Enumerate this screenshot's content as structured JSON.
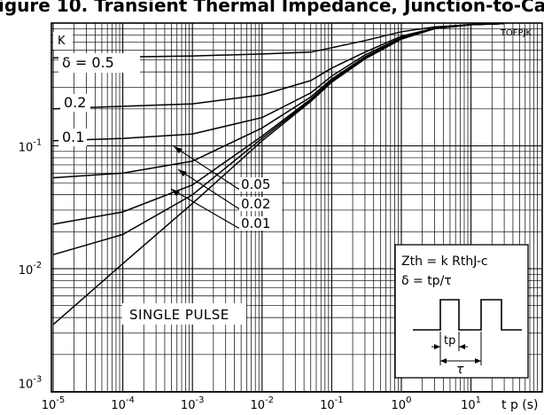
{
  "figure": {
    "clipped_title": "igure 10. Transient Thermal Impedance, Junction-to-Case",
    "code": "TOFPJK"
  },
  "chart_data": {
    "type": "line",
    "title": "",
    "xlabel": "t p (s)",
    "ylabel": "K",
    "x_scale": "log",
    "y_scale": "log",
    "xlim": [
      1e-05,
      100
    ],
    "ylim": [
      0.001,
      1
    ],
    "grid": true,
    "x_ticks": [
      {
        "value": 1e-05,
        "base": "10",
        "exp": "-5"
      },
      {
        "value": 0.0001,
        "base": "10",
        "exp": "-4"
      },
      {
        "value": 0.001,
        "base": "10",
        "exp": "-3"
      },
      {
        "value": 0.01,
        "base": "10",
        "exp": "-2"
      },
      {
        "value": 0.1,
        "base": "10",
        "exp": "-1"
      },
      {
        "value": 1,
        "base": "10",
        "exp": "0"
      },
      {
        "value": 10,
        "base": "10",
        "exp": "1"
      }
    ],
    "y_ticks": [
      {
        "value": 0.1,
        "base": "10",
        "exp": "-1"
      },
      {
        "value": 0.01,
        "base": "10",
        "exp": "-2"
      },
      {
        "value": 0.001,
        "base": "10",
        "exp": "-3"
      }
    ],
    "series": [
      {
        "name": "δ = 0.5",
        "x": [
          1e-05,
          0.0001,
          0.001,
          0.01,
          0.05,
          0.1,
          0.3,
          1,
          3,
          10,
          30
        ],
        "y": [
          0.52,
          0.53,
          0.54,
          0.56,
          0.58,
          0.63,
          0.72,
          0.85,
          0.93,
          0.97,
          0.99
        ]
      },
      {
        "name": "0.2",
        "x": [
          1e-05,
          0.0001,
          0.001,
          0.01,
          0.05,
          0.1,
          0.3,
          1,
          3,
          10,
          30
        ],
        "y": [
          0.2,
          0.21,
          0.22,
          0.26,
          0.34,
          0.43,
          0.58,
          0.78,
          0.91,
          0.97,
          0.99
        ]
      },
      {
        "name": "0.1",
        "x": [
          1e-05,
          0.0001,
          0.001,
          0.01,
          0.05,
          0.1,
          0.3,
          1,
          3,
          10,
          30
        ],
        "y": [
          0.11,
          0.115,
          0.125,
          0.17,
          0.27,
          0.37,
          0.55,
          0.76,
          0.9,
          0.97,
          0.99
        ]
      },
      {
        "name": "0.05",
        "x": [
          1e-05,
          0.0001,
          0.001,
          0.01,
          0.05,
          0.1,
          0.3,
          1,
          3,
          10,
          30
        ],
        "y": [
          0.055,
          0.06,
          0.075,
          0.14,
          0.25,
          0.35,
          0.53,
          0.75,
          0.9,
          0.97,
          0.99
        ]
      },
      {
        "name": "0.02",
        "x": [
          1e-05,
          0.0001,
          0.001,
          0.01,
          0.05,
          0.1,
          0.3,
          1,
          3,
          10,
          30
        ],
        "y": [
          0.023,
          0.029,
          0.048,
          0.12,
          0.24,
          0.34,
          0.52,
          0.75,
          0.9,
          0.97,
          0.99
        ]
      },
      {
        "name": "0.01",
        "x": [
          1e-05,
          0.0001,
          0.001,
          0.01,
          0.05,
          0.1,
          0.3,
          1,
          3,
          10,
          30
        ],
        "y": [
          0.013,
          0.019,
          0.04,
          0.115,
          0.235,
          0.335,
          0.52,
          0.75,
          0.9,
          0.97,
          0.99
        ]
      },
      {
        "name": "SINGLE PULSE",
        "x": [
          1e-05,
          0.0001,
          0.001,
          0.01,
          0.05,
          0.1,
          0.3,
          1,
          3,
          10,
          30
        ],
        "y": [
          0.0035,
          0.011,
          0.034,
          0.11,
          0.23,
          0.33,
          0.51,
          0.74,
          0.9,
          0.97,
          0.99
        ]
      }
    ],
    "curve_labels": {
      "d05": {
        "text": "δ = 0.5"
      },
      "d02": {
        "text": "0.2"
      },
      "d01": {
        "text": "0.1"
      },
      "d005": {
        "text": "0.05"
      },
      "d002": {
        "text": "0.02"
      },
      "d001": {
        "text": "0.01"
      },
      "single": {
        "text": "SINGLE PULSE"
      }
    },
    "legend_box": {
      "line1": "Zth = k RthJ-c",
      "line2": "δ = tp/τ",
      "tp_label": "tp",
      "tau_label": "τ"
    }
  }
}
